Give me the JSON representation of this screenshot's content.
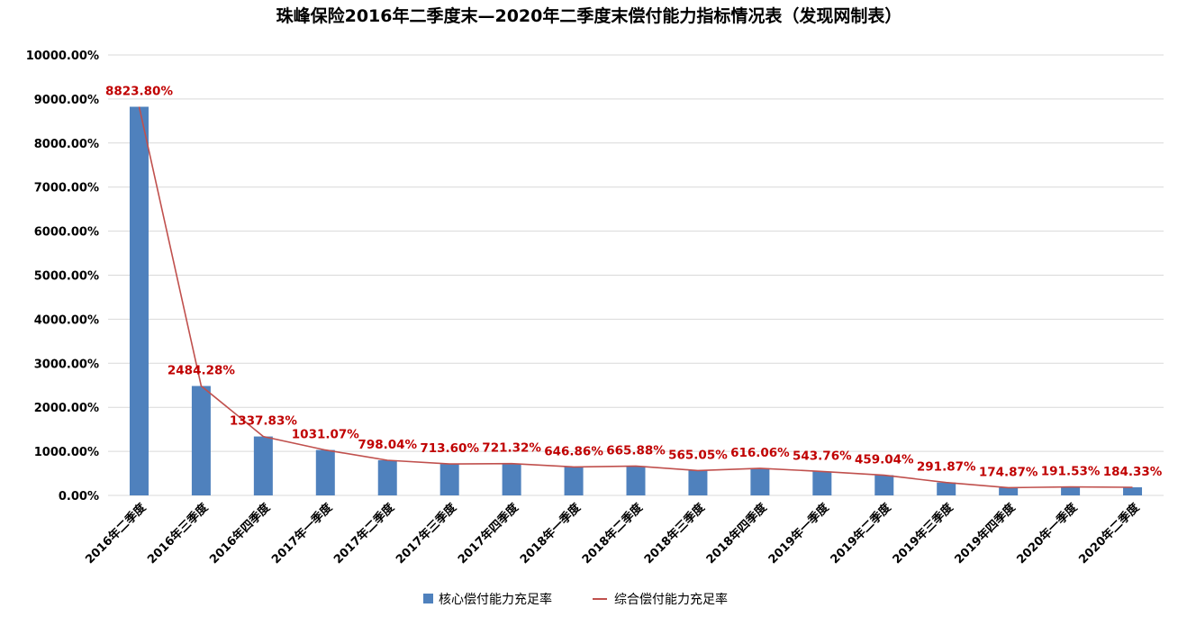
{
  "chart_data": {
    "type": "bar",
    "title": "珠峰保险2016年二季度末—2020年二季度末偿付能力指标情况表（发现网制表）",
    "categories": [
      "2016年二季度",
      "2016年三季度",
      "2016年四季度",
      "2017年一季度",
      "2017年二季度",
      "2017年三季度",
      "2017年四季度",
      "2018年一季度",
      "2018年二季度",
      "2018年三季度",
      "2018年四季度",
      "2019年一季度",
      "2019年二季度",
      "2019年三季度",
      "2019年四季度",
      "2020年一季度",
      "2020年二季度"
    ],
    "series": [
      {
        "name": "核心偿付能力充足率",
        "kind": "bar",
        "values": [
          8823.8,
          2484.28,
          1337.83,
          1031.07,
          798.04,
          713.6,
          721.32,
          646.86,
          665.88,
          565.05,
          616.06,
          543.76,
          459.04,
          291.87,
          174.87,
          191.53,
          184.33
        ]
      },
      {
        "name": "综合偿付能力充足率",
        "kind": "line",
        "values": [
          8823.8,
          2484.28,
          1337.83,
          1031.07,
          798.04,
          713.6,
          721.32,
          646.86,
          665.88,
          565.05,
          616.06,
          543.76,
          459.04,
          291.87,
          174.87,
          191.53,
          184.33
        ]
      }
    ],
    "data_labels": [
      "8823.80%",
      "2484.28%",
      "1337.83%",
      "1031.07%",
      "798.04%",
      "713.60%",
      "721.32%",
      "646.86%",
      "665.88%",
      "565.05%",
      "616.06%",
      "543.76%",
      "459.04%",
      "291.87%",
      "174.87%",
      "191.53%",
      "184.33%"
    ],
    "y_ticks": [
      "0.00%",
      "1000.00%",
      "2000.00%",
      "3000.00%",
      "4000.00%",
      "5000.00%",
      "6000.00%",
      "7000.00%",
      "8000.00%",
      "9000.00%",
      "10000.00%"
    ],
    "ylim": [
      0,
      10000
    ],
    "xlabel": "",
    "ylabel": "",
    "grid": true,
    "legend_position": "bottom",
    "colors": {
      "bar": "#4f81bd",
      "line": "#c0504d",
      "label": "#c00000",
      "grid": "#d9d9d9"
    }
  }
}
